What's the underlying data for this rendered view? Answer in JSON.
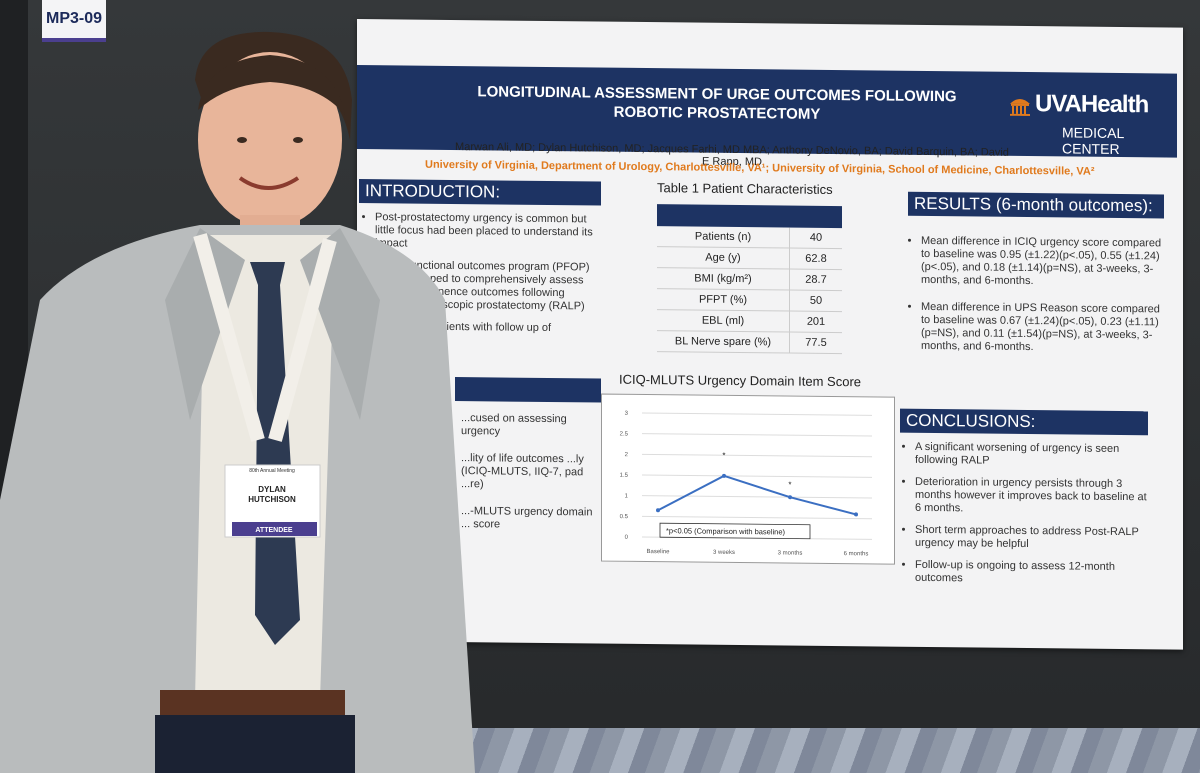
{
  "booth_tag": "MP3-09",
  "poster": {
    "title_line1": "LONGITUDINAL ASSESSMENT OF URGE OUTCOMES FOLLOWING",
    "title_line2": "ROBOTIC PROSTATECTOMY",
    "logo_main": "UVAHealth",
    "logo_sub": "MEDICAL CENTER",
    "authors": "Marwan Ali, MD; Dylan Hutchison, MD; Jacques Farhi, MD MBA; Anthony DeNovio, BA; David Barquin, BA; David E Rapp, MD",
    "affiliation": "University of Virginia, Department of Urology, Charlottesville, VA¹; University of Virginia, School of Medicine, Charlottesville, VA²",
    "introduction": {
      "heading": "INTRODUCTION:",
      "b1": "Post-prostatectomy urgency is common but little focus had been placed to understand its impact",
      "b2": "Pelvic functional outcomes program (PFOP) was developed to comprehensively assess and ...e continence outcomes following robotic ...paroscopic prostatectomy (RALP)",
      "b3": "...review of patients with follow up of"
    },
    "methods": {
      "b1": "...cused on assessing urgency",
      "b2": "...lity of life outcomes ...ly (ICIQ-MLUTS, IIQ-7, pad ...re)",
      "b3": "...-MLUTS urgency domain ... score"
    },
    "table": {
      "caption": "Table 1 Patient Characteristics",
      "rows": [
        {
          "label": "Patients (n)",
          "value": "40"
        },
        {
          "label": "Age (y)",
          "value": "62.8"
        },
        {
          "label": "BMI (kg/m²)",
          "value": "28.7"
        },
        {
          "label": "PFPT (%)",
          "value": "50"
        },
        {
          "label": "EBL (ml)",
          "value": "201"
        },
        {
          "label": "BL Nerve spare (%)",
          "value": "77.5"
        }
      ]
    },
    "results": {
      "heading": "RESULTS (6-month outcomes):",
      "b1": "Mean difference in ICIQ urgency score compared to baseline was 0.95 (±1.22)(p<.05), 0.55 (±1.24)(p<.05), and 0.18 (±1.14)(p=NS), at 3-weeks, 3-months, and 6-months.",
      "b2": "Mean difference in UPS Reason score compared to baseline was 0.67 (±1.24)(p<.05), 0.23 (±1.11)(p=NS), and 0.11 (±1.54)(p=NS), at 3-weeks, 3-months, and 6-months."
    },
    "conclusions": {
      "heading": "CONCLUSIONS:",
      "b1": "A significant worsening of urgency is seen following RALP",
      "b2": "Deterioration in urgency persists through 3 months however it improves back to baseline at 6 months.",
      "b3": "Short term approaches to address Post-RALP urgency may be helpful",
      "b4": "Follow-up is ongoing to assess 12-month outcomes"
    },
    "badge": {
      "meeting": "80th Annual Meeting",
      "name_first": "DYLAN",
      "name_last": "HUTCHISON",
      "role": "ATTENDEE"
    }
  },
  "chart_data": {
    "type": "line",
    "title": "ICIQ-MLUTS Urgency Domain Item Score",
    "categories": [
      "Baseline",
      "3 weeks",
      "3 months",
      "6 months"
    ],
    "values": [
      0.65,
      1.5,
      1.0,
      0.6
    ],
    "significance_markers": [
      "3 weeks",
      "3 months"
    ],
    "yticks": [
      "0",
      "0.5",
      "1",
      "1.5",
      "2",
      "2.5",
      "3"
    ],
    "ylim": [
      0,
      3
    ],
    "annotation": "*p<0.05 (Comparison with baseline)",
    "series_color": "#3b6fc2"
  }
}
